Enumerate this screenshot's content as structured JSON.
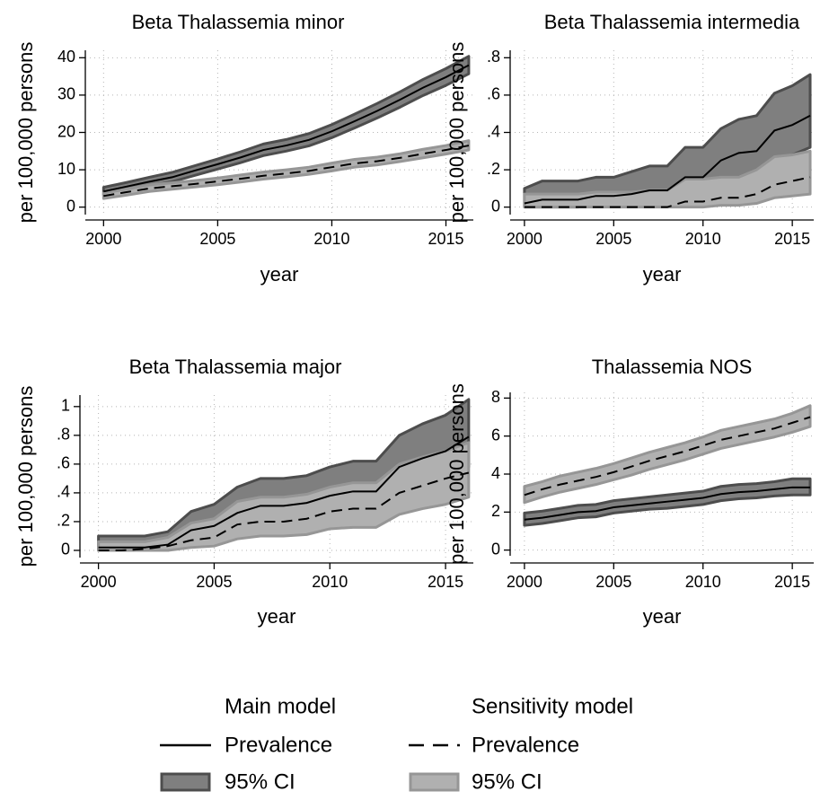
{
  "chart_data": [
    {
      "type": "line",
      "title": "Beta Thalassemia minor",
      "x_label": "year",
      "y_label": "per 100,000 persons",
      "x": [
        2000,
        2001,
        2002,
        2003,
        2004,
        2005,
        2006,
        2007,
        2008,
        2009,
        2010,
        2011,
        2012,
        2013,
        2014,
        2015,
        2016
      ],
      "xlim": [
        1999.2,
        2016.2
      ],
      "xticks": [
        2000,
        2005,
        2010,
        2015
      ],
      "ylim": [
        -2,
        42
      ],
      "yticks": [
        0,
        10,
        20,
        30,
        40
      ],
      "grid": true,
      "series": [
        {
          "color": "#7f7f7f",
          "edge": "#4d4d4d",
          "dashed": false,
          "values": [
            4.2,
            5.5,
            6.8,
            8,
            9.8,
            11.5,
            13.3,
            15.3,
            16.5,
            18,
            20.3,
            23,
            25.8,
            28.8,
            32,
            34.8,
            38
          ],
          "lower": [
            3.2,
            4.4,
            5.6,
            6.8,
            8.5,
            10.2,
            11.9,
            13.8,
            15,
            16.4,
            18.6,
            21.2,
            23.9,
            26.8,
            29.9,
            32.6,
            35.7
          ],
          "upper": [
            5.3,
            6.6,
            8,
            9.3,
            11.1,
            12.9,
            14.8,
            16.9,
            18.1,
            19.7,
            22.1,
            24.9,
            27.8,
            30.9,
            34.2,
            37.1,
            40.4
          ]
        },
        {
          "color": "#b0b0b0",
          "edge": "#969696",
          "dashed": true,
          "values": [
            3,
            4,
            5,
            5.6,
            6.2,
            6.9,
            7.6,
            8.4,
            9,
            9.7,
            10.7,
            11.7,
            12.3,
            13.2,
            14.3,
            15.3,
            16.5
          ],
          "lower": [
            2.3,
            3.2,
            4.2,
            4.8,
            5.4,
            6,
            6.7,
            7.5,
            8.1,
            8.8,
            9.7,
            10.7,
            11.3,
            12.2,
            13.2,
            14.2,
            15.3
          ],
          "upper": [
            3.8,
            4.8,
            5.9,
            6.5,
            7.1,
            7.8,
            8.6,
            9.4,
            10,
            10.7,
            11.8,
            12.8,
            13.4,
            14.3,
            15.5,
            16.5,
            17.8
          ]
        }
      ]
    },
    {
      "type": "line",
      "title": "Beta Thalassemia intermedia",
      "x_label": "year",
      "y_label": "per 100,000 persons",
      "x": [
        2000,
        2001,
        2002,
        2003,
        2004,
        2005,
        2006,
        2007,
        2008,
        2009,
        2010,
        2011,
        2012,
        2013,
        2014,
        2015,
        2016
      ],
      "xlim": [
        1999.2,
        2016.2
      ],
      "xticks": [
        2000,
        2005,
        2010,
        2015
      ],
      "ylim": [
        -0.04,
        0.84
      ],
      "yticks": [
        0,
        {
          "value": 0.2,
          "label": ".2"
        },
        {
          "value": 0.4,
          "label": ".4"
        },
        {
          "value": 0.6,
          "label": ".6"
        },
        {
          "value": 0.8,
          "label": ".8"
        }
      ],
      "grid": true,
      "series": [
        {
          "color": "#7f7f7f",
          "edge": "#4d4d4d",
          "dashed": false,
          "values": [
            0.02,
            0.04,
            0.04,
            0.04,
            0.06,
            0.06,
            0.07,
            0.09,
            0.09,
            0.16,
            0.16,
            0.25,
            0.29,
            0.3,
            0.41,
            0.44,
            0.49
          ],
          "lower": [
            0,
            0,
            0,
            0,
            0.01,
            0.01,
            0.02,
            0.03,
            0.03,
            0.07,
            0.07,
            0.13,
            0.16,
            0.16,
            0.25,
            0.28,
            0.32
          ],
          "upper": [
            0.1,
            0.14,
            0.14,
            0.14,
            0.16,
            0.16,
            0.19,
            0.22,
            0.22,
            0.32,
            0.32,
            0.42,
            0.47,
            0.49,
            0.61,
            0.65,
            0.71
          ]
        },
        {
          "color": "#b0b0b0",
          "edge": "#969696",
          "dashed": true,
          "values": [
            0,
            0,
            0,
            0,
            0,
            0,
            0,
            0,
            0,
            0.03,
            0.03,
            0.05,
            0.05,
            0.07,
            0.12,
            0.14,
            0.16
          ],
          "lower": [
            0,
            0,
            0,
            0,
            0,
            0,
            0,
            0,
            0,
            0,
            0,
            0.01,
            0.01,
            0.02,
            0.05,
            0.06,
            0.07
          ],
          "upper": [
            0.07,
            0.07,
            0.07,
            0.07,
            0.08,
            0.08,
            0.08,
            0.09,
            0.09,
            0.15,
            0.15,
            0.16,
            0.16,
            0.2,
            0.27,
            0.28,
            0.3
          ]
        }
      ]
    },
    {
      "type": "line",
      "title": "Beta Thalassemia major",
      "x_label": "year",
      "y_label": "per 100,000 persons",
      "x": [
        2000,
        2001,
        2002,
        2003,
        2004,
        2005,
        2006,
        2007,
        2008,
        2009,
        2010,
        2011,
        2012,
        2013,
        2014,
        2015,
        2016
      ],
      "xlim": [
        1999.2,
        2016.2
      ],
      "xticks": [
        2000,
        2005,
        2010,
        2015
      ],
      "ylim": [
        -0.05,
        1.08
      ],
      "yticks": [
        0,
        {
          "value": 0.2,
          "label": ".2"
        },
        {
          "value": 0.4,
          "label": ".4"
        },
        {
          "value": 0.6,
          "label": ".6"
        },
        {
          "value": 0.8,
          "label": ".8"
        },
        1
      ],
      "grid": true,
      "series": [
        {
          "color": "#7f7f7f",
          "edge": "#4d4d4d",
          "dashed": false,
          "values": [
            0.02,
            0.02,
            0.02,
            0.04,
            0.14,
            0.17,
            0.26,
            0.31,
            0.31,
            0.33,
            0.38,
            0.41,
            0.41,
            0.58,
            0.64,
            0.69,
            0.79
          ],
          "lower": [
            0,
            0,
            0,
            0,
            0.06,
            0.08,
            0.14,
            0.18,
            0.18,
            0.19,
            0.23,
            0.25,
            0.25,
            0.4,
            0.45,
            0.5,
            0.58
          ],
          "upper": [
            0.1,
            0.1,
            0.1,
            0.13,
            0.27,
            0.32,
            0.44,
            0.5,
            0.5,
            0.52,
            0.58,
            0.62,
            0.62,
            0.8,
            0.88,
            0.94,
            1.05
          ]
        },
        {
          "color": "#b0b0b0",
          "edge": "#969696",
          "dashed": true,
          "values": [
            0,
            0,
            0.01,
            0.03,
            0.07,
            0.09,
            0.18,
            0.2,
            0.2,
            0.22,
            0.27,
            0.29,
            0.29,
            0.4,
            0.45,
            0.5,
            0.54
          ],
          "lower": [
            0,
            0,
            0,
            0,
            0.02,
            0.03,
            0.08,
            0.1,
            0.1,
            0.11,
            0.15,
            0.16,
            0.16,
            0.25,
            0.29,
            0.32,
            0.37
          ],
          "upper": [
            0.06,
            0.06,
            0.06,
            0.09,
            0.19,
            0.22,
            0.34,
            0.37,
            0.37,
            0.39,
            0.44,
            0.47,
            0.47,
            0.6,
            0.65,
            0.69,
            0.75
          ]
        }
      ]
    },
    {
      "type": "line",
      "title": "Thalassemia NOS",
      "x_label": "year",
      "y_label": "per 100,000 persons",
      "x": [
        2000,
        2001,
        2002,
        2003,
        2004,
        2005,
        2006,
        2007,
        2008,
        2009,
        2010,
        2011,
        2012,
        2013,
        2014,
        2015,
        2016
      ],
      "xlim": [
        1999.2,
        2016.2
      ],
      "xticks": [
        2000,
        2005,
        2010,
        2015
      ],
      "ylim": [
        -0.3,
        8.3
      ],
      "yticks": [
        0,
        2,
        4,
        6,
        8
      ],
      "grid": true,
      "series": [
        {
          "color": "#7f7f7f",
          "edge": "#4d4d4d",
          "dashed": false,
          "values": [
            1.6,
            1.7,
            1.85,
            2,
            2.05,
            2.25,
            2.35,
            2.45,
            2.55,
            2.65,
            2.75,
            2.95,
            3.05,
            3.1,
            3.2,
            3.3,
            3.3
          ],
          "lower": [
            1.3,
            1.4,
            1.55,
            1.7,
            1.75,
            1.95,
            2.05,
            2.15,
            2.2,
            2.3,
            2.4,
            2.6,
            2.7,
            2.75,
            2.85,
            2.9,
            2.9
          ],
          "upper": [
            1.95,
            2.05,
            2.2,
            2.35,
            2.4,
            2.6,
            2.7,
            2.8,
            2.9,
            3,
            3.1,
            3.35,
            3.45,
            3.5,
            3.6,
            3.75,
            3.75
          ]
        },
        {
          "color": "#b0b0b0",
          "edge": "#969696",
          "dashed": true,
          "values": [
            2.9,
            3.2,
            3.45,
            3.65,
            3.85,
            4.1,
            4.4,
            4.7,
            4.95,
            5.2,
            5.5,
            5.8,
            6,
            6.2,
            6.4,
            6.7,
            7
          ],
          "lower": [
            2.5,
            2.8,
            3.05,
            3.25,
            3.45,
            3.7,
            3.95,
            4.25,
            4.5,
            4.75,
            5.05,
            5.35,
            5.55,
            5.75,
            5.95,
            6.2,
            6.5
          ],
          "upper": [
            3.35,
            3.6,
            3.9,
            4.1,
            4.3,
            4.55,
            4.85,
            5.15,
            5.4,
            5.65,
            5.95,
            6.3,
            6.5,
            6.7,
            6.9,
            7.2,
            7.6
          ]
        }
      ]
    }
  ],
  "legend": [
    {
      "title": "Main model",
      "line": "Prevalence",
      "band": "95% CI"
    },
    {
      "title": "Sensitivity model",
      "line": "Prevalence",
      "band": "95% CI"
    }
  ]
}
